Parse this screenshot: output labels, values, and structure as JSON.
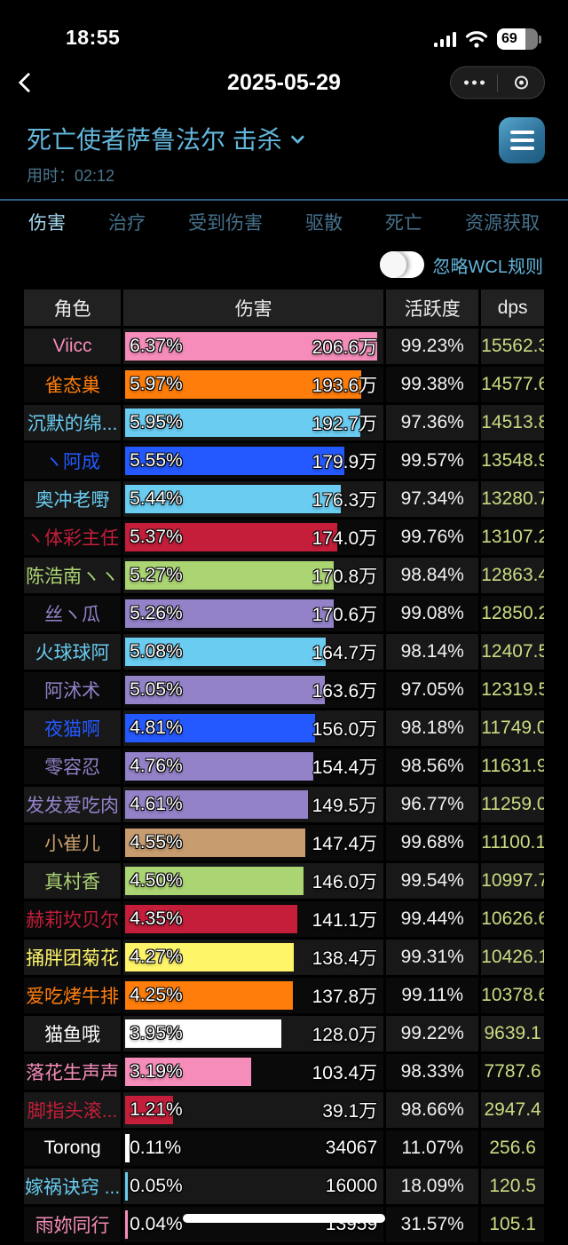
{
  "status_bar": {
    "time": "18:55",
    "battery_level": "69",
    "battery_fill_pct": 69
  },
  "nav": {
    "title": "2025-05-29"
  },
  "report": {
    "boss_title": "死亡使者萨鲁法尔 击杀",
    "duration_label": "用时：",
    "duration": "02:12"
  },
  "tabs": [
    {
      "label": "伤害",
      "active": true
    },
    {
      "label": "治疗",
      "active": false
    },
    {
      "label": "受到伤害",
      "active": false
    },
    {
      "label": "驱散",
      "active": false
    },
    {
      "label": "死亡",
      "active": false
    },
    {
      "label": "资源获取",
      "active": false
    }
  ],
  "wcl_toggle": {
    "label": "忽略WCL规则",
    "on": false
  },
  "table": {
    "headers": {
      "role": "角色",
      "damage": "伤害",
      "activity": "活跃度",
      "dps": "dps"
    },
    "max_pct": 6.37,
    "rows": [
      {
        "name": "Viicc",
        "class_color": "#F58CBA",
        "pct": "6.37%",
        "amount": "206.6万",
        "activity": "99.23%",
        "dps": "15562.3"
      },
      {
        "name": "雀态巢",
        "class_color": "#FF7D0A",
        "pct": "5.97%",
        "amount": "193.6万",
        "activity": "99.38%",
        "dps": "14577.6"
      },
      {
        "name": "沉默的绵...",
        "class_color": "#69CCF0",
        "pct": "5.95%",
        "amount": "192.7万",
        "activity": "97.36%",
        "dps": "14513.8"
      },
      {
        "name": "ヽ阿成",
        "class_color": "#2459FF",
        "pct": "5.55%",
        "amount": "179.9万",
        "activity": "99.57%",
        "dps": "13548.9"
      },
      {
        "name": "奥冲老嘢",
        "class_color": "#69CCF0",
        "pct": "5.44%",
        "amount": "176.3万",
        "activity": "97.34%",
        "dps": "13280.7"
      },
      {
        "name": "ヽ体彩主任",
        "class_color": "#C41E3A",
        "pct": "5.37%",
        "amount": "174.0万",
        "activity": "99.76%",
        "dps": "13107.2"
      },
      {
        "name": "陈浩南ヽヽ",
        "class_color": "#ABD473",
        "pct": "5.27%",
        "amount": "170.8万",
        "activity": "98.84%",
        "dps": "12863.4"
      },
      {
        "name": "丝ヽ瓜",
        "class_color": "#9482C9",
        "pct": "5.26%",
        "amount": "170.6万",
        "activity": "99.08%",
        "dps": "12850.2"
      },
      {
        "name": "火球球阿",
        "class_color": "#69CCF0",
        "pct": "5.08%",
        "amount": "164.7万",
        "activity": "98.14%",
        "dps": "12407.5"
      },
      {
        "name": "阿沭术",
        "class_color": "#9482C9",
        "pct": "5.05%",
        "amount": "163.6万",
        "activity": "97.05%",
        "dps": "12319.5"
      },
      {
        "name": "夜猫啊",
        "class_color": "#2459FF",
        "pct": "4.81%",
        "amount": "156.0万",
        "activity": "98.18%",
        "dps": "11749.0"
      },
      {
        "name": "零容忍",
        "class_color": "#9482C9",
        "pct": "4.76%",
        "amount": "154.4万",
        "activity": "98.56%",
        "dps": "11631.9"
      },
      {
        "name": "发发爱吃肉",
        "class_color": "#9482C9",
        "pct": "4.61%",
        "amount": "149.5万",
        "activity": "96.77%",
        "dps": "11259.0"
      },
      {
        "name": "小崔儿",
        "class_color": "#C79C6E",
        "pct": "4.55%",
        "amount": "147.4万",
        "activity": "99.68%",
        "dps": "11100.1"
      },
      {
        "name": "真村香",
        "class_color": "#ABD473",
        "pct": "4.50%",
        "amount": "146.0万",
        "activity": "99.54%",
        "dps": "10997.7"
      },
      {
        "name": "赫莉坎贝尔",
        "class_color": "#C41E3A",
        "pct": "4.35%",
        "amount": "141.1万",
        "activity": "99.44%",
        "dps": "10626.6"
      },
      {
        "name": "捅胖团菊花",
        "class_color": "#FFF569",
        "pct": "4.27%",
        "amount": "138.4万",
        "activity": "99.31%",
        "dps": "10426.1"
      },
      {
        "name": "爱吃烤牛排",
        "class_color": "#FF7D0A",
        "pct": "4.25%",
        "amount": "137.8万",
        "activity": "99.11%",
        "dps": "10378.6"
      },
      {
        "name": "猫鱼哦",
        "class_color": "#FFFFFF",
        "pct": "3.95%",
        "amount": "128.0万",
        "activity": "99.22%",
        "dps": "9639.1"
      },
      {
        "name": "落花生声声",
        "class_color": "#F58CBA",
        "pct": "3.19%",
        "amount": "103.4万",
        "activity": "98.33%",
        "dps": "7787.6"
      },
      {
        "name": "脚指头滚...",
        "class_color": "#C41E3A",
        "pct": "1.21%",
        "amount": "39.1万",
        "activity": "98.66%",
        "dps": "2947.4"
      },
      {
        "name": "Torong",
        "class_color": "#FFFFFF",
        "pct": "0.11%",
        "amount": "34067",
        "activity": "11.07%",
        "dps": "256.6"
      },
      {
        "name": "嫁祸诀窍 ...",
        "class_color": "#69CCF0",
        "pct": "0.05%",
        "amount": "16000",
        "activity": "18.09%",
        "dps": "120.5"
      },
      {
        "name": "雨妳同行",
        "class_color": "#F58CBA",
        "pct": "0.04%",
        "amount": "13959",
        "activity": "31.57%",
        "dps": "105.1"
      }
    ]
  },
  "colors": {
    "accent_blue": "#63B6DC",
    "tab_active": "#A7D7ED",
    "tab_inactive": "#45708A",
    "dps_text": "#C9DC82"
  }
}
